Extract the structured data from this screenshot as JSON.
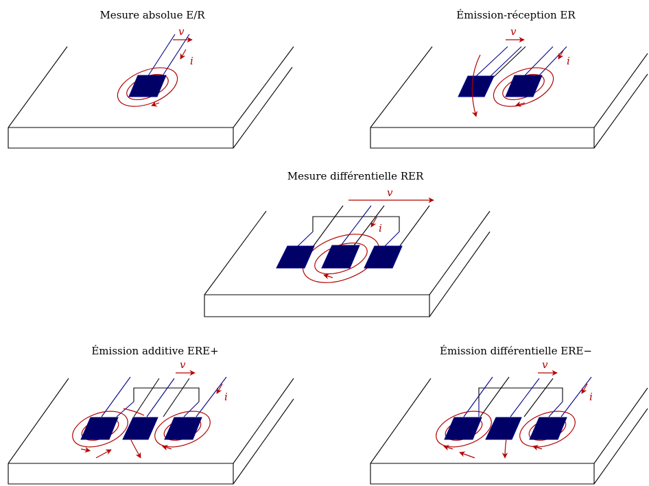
{
  "panels": [
    {
      "title": "Mesure absolue E/R",
      "v": "v",
      "i": "i"
    },
    {
      "title": "Émission-réception ER",
      "v": "v",
      "i": "i"
    },
    {
      "title": "Mesure différentielle RER",
      "v": "v",
      "i": "i"
    },
    {
      "title": "Émission additive ERE+",
      "v": "v",
      "i": "i"
    },
    {
      "title": "Émission différentielle ERE−",
      "v": "v",
      "i": "i"
    }
  ],
  "colors": {
    "coil": "#000066",
    "wire": "#00008b",
    "current": "#b30000"
  }
}
